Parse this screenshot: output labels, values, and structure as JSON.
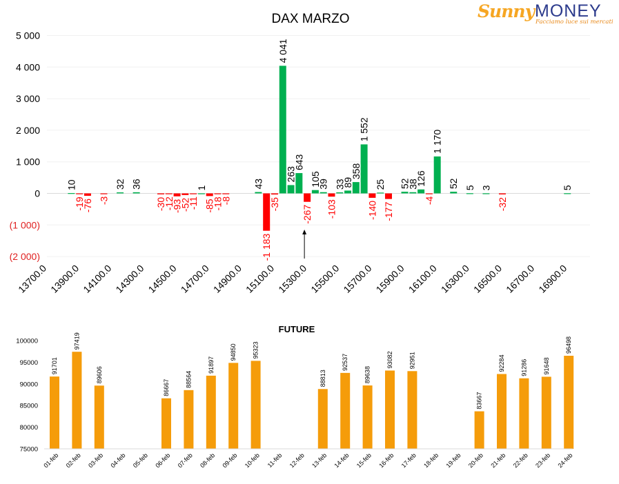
{
  "logo": {
    "word1": "Sunny",
    "word2": "MONEY",
    "tagline": "Facciamo luce sui mercati"
  },
  "colors": {
    "positive": "#00b050",
    "negative": "#ff0000",
    "future_bar": "#f59c0a",
    "neg_axis": "#e02020"
  },
  "chart_data": [
    {
      "type": "bar",
      "title": "DAX MARZO",
      "ylim": [
        -2000,
        5000
      ],
      "y_ticks": [
        {
          "value": 5000,
          "label": "5 000"
        },
        {
          "value": 4000,
          "label": "4 000"
        },
        {
          "value": 3000,
          "label": "3 000"
        },
        {
          "value": 2000,
          "label": "2 000"
        },
        {
          "value": 1000,
          "label": "1 000"
        },
        {
          "value": 0,
          "label": "0"
        },
        {
          "value": -1000,
          "label": "(1 000)"
        },
        {
          "value": -2000,
          "label": "(2 000)"
        }
      ],
      "x_ticks": [
        "13700.0",
        "13900.0",
        "14100.0",
        "14300.0",
        "14500.0",
        "14700.0",
        "14900.0",
        "15100.0",
        "15300.0",
        "15500.0",
        "15700.0",
        "15900.0",
        "16100.0",
        "16300.0",
        "16500.0",
        "16700.0",
        "16900.0"
      ],
      "marker": {
        "strike": 15300,
        "symbol": "arrow-up"
      },
      "bars": [
        {
          "strike": 13850,
          "value": 10,
          "label": "10"
        },
        {
          "strike": 13900,
          "value": -19,
          "label": "-19"
        },
        {
          "strike": 13950,
          "value": -76,
          "label": "-76"
        },
        {
          "strike": 14050,
          "value": -3,
          "label": "-3"
        },
        {
          "strike": 14150,
          "value": 32,
          "label": "32"
        },
        {
          "strike": 14250,
          "value": 36,
          "label": "36"
        },
        {
          "strike": 14400,
          "value": -30,
          "label": "-30"
        },
        {
          "strike": 14450,
          "value": -12,
          "label": "-12"
        },
        {
          "strike": 14500,
          "value": -93,
          "label": "-93"
        },
        {
          "strike": 14550,
          "value": -52,
          "label": "-52"
        },
        {
          "strike": 14600,
          "value": -11,
          "label": "-11"
        },
        {
          "strike": 14650,
          "value": 1,
          "label": "1"
        },
        {
          "strike": 14700,
          "value": -85,
          "label": "-85"
        },
        {
          "strike": 14750,
          "value": -18,
          "label": "-18"
        },
        {
          "strike": 14800,
          "value": -8,
          "label": "-8"
        },
        {
          "strike": 15000,
          "value": 43,
          "label": "43"
        },
        {
          "strike": 15050,
          "value": -1183,
          "label": "-1 183"
        },
        {
          "strike": 15100,
          "value": -35,
          "label": "-35"
        },
        {
          "strike": 15150,
          "value": 4041,
          "label": "4 041"
        },
        {
          "strike": 15200,
          "value": 263,
          "label": "263"
        },
        {
          "strike": 15250,
          "value": 643,
          "label": "643"
        },
        {
          "strike": 15300,
          "value": -267,
          "label": "-267"
        },
        {
          "strike": 15350,
          "value": 105,
          "label": "105"
        },
        {
          "strike": 15400,
          "value": 39,
          "label": "39"
        },
        {
          "strike": 15450,
          "value": -103,
          "label": "-103"
        },
        {
          "strike": 15500,
          "value": 33,
          "label": "33"
        },
        {
          "strike": 15550,
          "value": 89,
          "label": "89"
        },
        {
          "strike": 15600,
          "value": 358,
          "label": "358"
        },
        {
          "strike": 15650,
          "value": 1552,
          "label": "1 552"
        },
        {
          "strike": 15700,
          "value": -140,
          "label": "-140"
        },
        {
          "strike": 15750,
          "value": 25,
          "label": "25"
        },
        {
          "strike": 15800,
          "value": -177,
          "label": "-177"
        },
        {
          "strike": 15900,
          "value": 52,
          "label": "52"
        },
        {
          "strike": 15950,
          "value": 38,
          "label": "38"
        },
        {
          "strike": 16000,
          "value": 126,
          "label": "126"
        },
        {
          "strike": 16050,
          "value": -4,
          "label": "-4"
        },
        {
          "strike": 16100,
          "value": 1170,
          "label": "1 170"
        },
        {
          "strike": 16200,
          "value": 52,
          "label": "52"
        },
        {
          "strike": 16300,
          "value": 5,
          "label": "5"
        },
        {
          "strike": 16400,
          "value": 3,
          "label": "3"
        },
        {
          "strike": 16500,
          "value": -32,
          "label": "-32"
        },
        {
          "strike": 16900,
          "value": 5,
          "label": "5"
        }
      ]
    },
    {
      "type": "bar",
      "title": "FUTURE",
      "ylim": [
        75000,
        100000
      ],
      "y_ticks": [
        100000,
        95000,
        90000,
        85000,
        80000,
        75000
      ],
      "categories": [
        "01-feb",
        "02-feb",
        "03-feb",
        "04-feb",
        "05-feb",
        "06-feb",
        "07-feb",
        "08-feb",
        "09-feb",
        "10-feb",
        "11-feb",
        "12-feb",
        "13-feb",
        "14-feb",
        "15-feb",
        "16-feb",
        "17-feb",
        "18-feb",
        "19-feb",
        "20-feb",
        "21-feb",
        "22-feb",
        "23-feb",
        "24-feb"
      ],
      "values": [
        91701,
        97419,
        89606,
        null,
        null,
        86667,
        88564,
        91897,
        94850,
        95323,
        null,
        null,
        88813,
        92537,
        89638,
        93082,
        92951,
        null,
        null,
        83667,
        92284,
        91286,
        91648,
        96498
      ]
    }
  ]
}
